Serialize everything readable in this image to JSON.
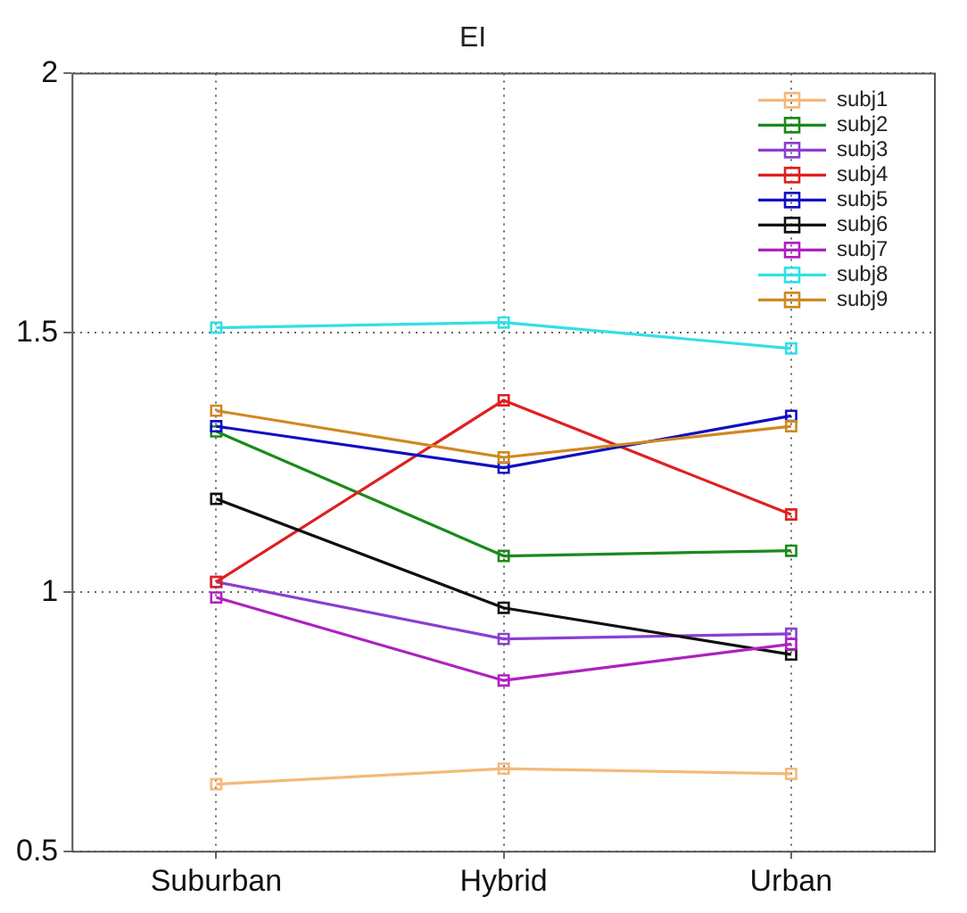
{
  "chart_data": {
    "type": "line",
    "title": "EI",
    "categories": [
      "Suburban",
      "Hybrid",
      "Urban"
    ],
    "ylim": [
      0.5,
      2
    ],
    "yticks": [
      0.5,
      1,
      1.5,
      2
    ],
    "grid": true,
    "legend": "top right",
    "marker": "square",
    "line_style": "solid",
    "series": [
      {
        "name": "subj1",
        "color": "#f4b97a",
        "values": [
          0.63,
          0.66,
          0.65
        ]
      },
      {
        "name": "subj2",
        "color": "#1a8a1a",
        "values": [
          1.31,
          1.07,
          1.08
        ]
      },
      {
        "name": "subj3",
        "color": "#8a3fd0",
        "values": [
          1.02,
          0.91,
          0.92
        ]
      },
      {
        "name": "subj4",
        "color": "#e02020",
        "values": [
          1.02,
          1.37,
          1.15
        ]
      },
      {
        "name": "subj5",
        "color": "#1010c0",
        "values": [
          1.32,
          1.24,
          1.34
        ]
      },
      {
        "name": "subj6",
        "color": "#101010",
        "values": [
          1.18,
          0.97,
          0.88
        ]
      },
      {
        "name": "subj7",
        "color": "#b020c0",
        "values": [
          0.99,
          0.83,
          0.9
        ]
      },
      {
        "name": "subj8",
        "color": "#30e0e8",
        "values": [
          1.51,
          1.52,
          1.47
        ]
      },
      {
        "name": "subj9",
        "color": "#d08820",
        "values": [
          1.35,
          1.26,
          1.32
        ]
      }
    ]
  }
}
